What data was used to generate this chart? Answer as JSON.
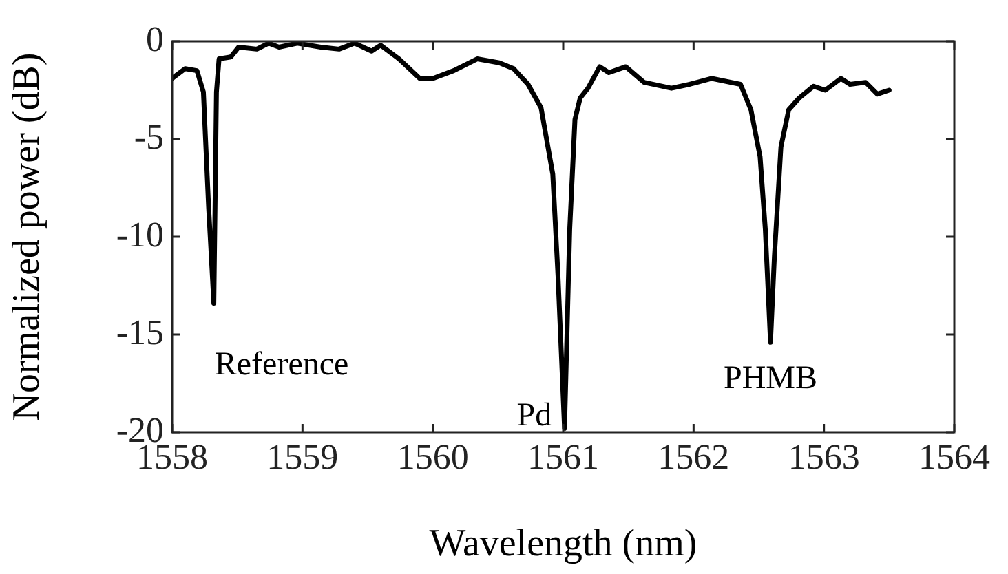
{
  "chart_data": {
    "type": "line",
    "xlabel": "Wavelength (nm)",
    "ylabel": "Normalized power (dB)",
    "xlim": [
      1558,
      1564
    ],
    "xticks": [
      1558,
      1559,
      1560,
      1561,
      1562,
      1563,
      1564
    ],
    "ylim": [
      -20,
      0
    ],
    "yticks": [
      -20,
      -15,
      -10,
      -5,
      0
    ],
    "grid": false,
    "legend": false,
    "marker": "none",
    "line_style": "solid",
    "annotations": [
      "Reference",
      "Pd",
      "PHMB"
    ],
    "series": [
      {
        "color": "#000000",
        "x": [
          1558.0,
          1558.1,
          1558.19,
          1558.24,
          1558.28,
          1558.32,
          1558.34,
          1558.36,
          1558.45,
          1558.51,
          1558.65,
          1558.74,
          1558.82,
          1558.96,
          1559.14,
          1559.28,
          1559.4,
          1559.53,
          1559.6,
          1559.74,
          1559.9,
          1560.0,
          1560.16,
          1560.34,
          1560.51,
          1560.62,
          1560.73,
          1560.83,
          1560.92,
          1560.96,
          1561.01,
          1561.05,
          1561.09,
          1561.13,
          1561.19,
          1561.28,
          1561.35,
          1561.48,
          1561.62,
          1561.83,
          1561.97,
          1562.14,
          1562.36,
          1562.44,
          1562.51,
          1562.55,
          1562.59,
          1562.62,
          1562.67,
          1562.73,
          1562.81,
          1562.92,
          1563.01,
          1563.13,
          1563.2,
          1563.32,
          1563.41,
          1563.5
        ],
        "values": [
          -1.9,
          -1.4,
          -1.5,
          -2.6,
          -8.5,
          -13.4,
          -2.6,
          -0.9,
          -0.8,
          -0.3,
          -0.4,
          -0.1,
          -0.3,
          -0.1,
          -0.3,
          -0.4,
          -0.1,
          -0.5,
          -0.2,
          -0.9,
          -1.9,
          -1.9,
          -1.5,
          -0.9,
          -1.1,
          -1.4,
          -2.2,
          -3.4,
          -6.8,
          -12,
          -19.8,
          -9.6,
          -4,
          -2.9,
          -2.4,
          -1.3,
          -1.6,
          -1.3,
          -2.1,
          -2.4,
          -2.2,
          -1.9,
          -2.2,
          -3.5,
          -5.9,
          -9.6,
          -15.4,
          -11,
          -5.4,
          -3.5,
          -2.9,
          -2.3,
          -2.5,
          -1.9,
          -2.2,
          -2.1,
          -2.7,
          -2.5
        ]
      }
    ]
  }
}
